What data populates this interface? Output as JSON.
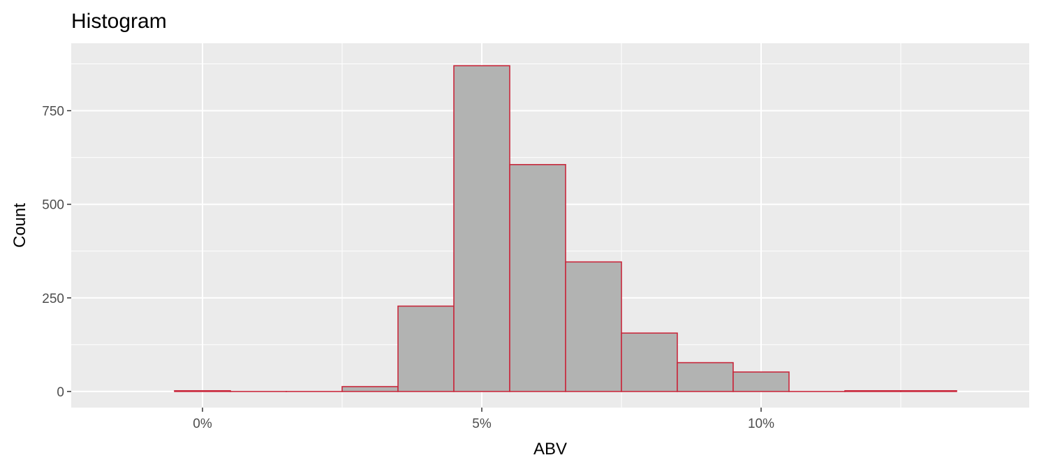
{
  "chart_data": {
    "type": "bar",
    "title": "Histogram",
    "xlabel": "ABV",
    "ylabel": "Count",
    "bin_width": 1,
    "bins": [
      {
        "center": 0,
        "count": 2
      },
      {
        "center": 1,
        "count": 0
      },
      {
        "center": 2,
        "count": 0
      },
      {
        "center": 3,
        "count": 13
      },
      {
        "center": 4,
        "count": 228
      },
      {
        "center": 5,
        "count": 870
      },
      {
        "center": 6,
        "count": 606
      },
      {
        "center": 7,
        "count": 346
      },
      {
        "center": 8,
        "count": 156
      },
      {
        "center": 9,
        "count": 77
      },
      {
        "center": 10,
        "count": 52
      },
      {
        "center": 11,
        "count": 0
      },
      {
        "center": 12,
        "count": 2
      },
      {
        "center": 13,
        "count": 2
      }
    ],
    "xlim": [
      -2.35,
      14.8
    ],
    "ylim": [
      -43,
      930
    ],
    "x_ticks": [
      {
        "value": 0,
        "label": "0%"
      },
      {
        "value": 5,
        "label": "5%"
      },
      {
        "value": 10,
        "label": "10%"
      }
    ],
    "y_ticks": [
      {
        "value": 0,
        "label": "0"
      },
      {
        "value": 250,
        "label": "250"
      },
      {
        "value": 500,
        "label": "500"
      },
      {
        "value": 750,
        "label": "750"
      }
    ],
    "grid": true,
    "colors": {
      "bar_fill": "#b2b3b2",
      "bar_stroke": "#c8283c",
      "panel_background": "#ebebeb",
      "grid": "#ffffff"
    }
  }
}
